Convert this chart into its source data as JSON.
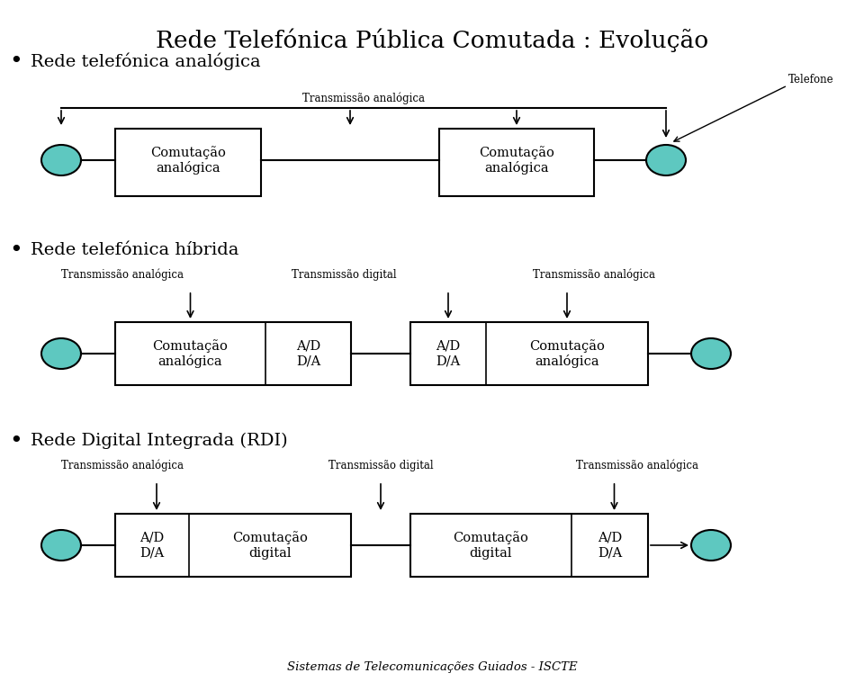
{
  "title": "Rede Telefónica Pública Comutada : Evolução",
  "footer": "Sistemas de Telecomunicações Guiados - ISCTE",
  "bg_color": "#ffffff",
  "text_color": "#000000",
  "box_color": "#ffffff",
  "box_edge": "#000000",
  "ellipse_color": "#5ec8c0",
  "section1_label": "Rede telefónica analógica",
  "section2_label": "Rede telefónica híbrida",
  "section3_label": "Rede Digital Integrada (RDI)",
  "trans_analog": "Transmissão analógica",
  "trans_digital": "Transmissão digital",
  "com_analog": "Comutação\nanalógica",
  "com_digital": "Comutação\ndigital",
  "ad_da": "A/D\nD/A",
  "telefone": "Telefone"
}
